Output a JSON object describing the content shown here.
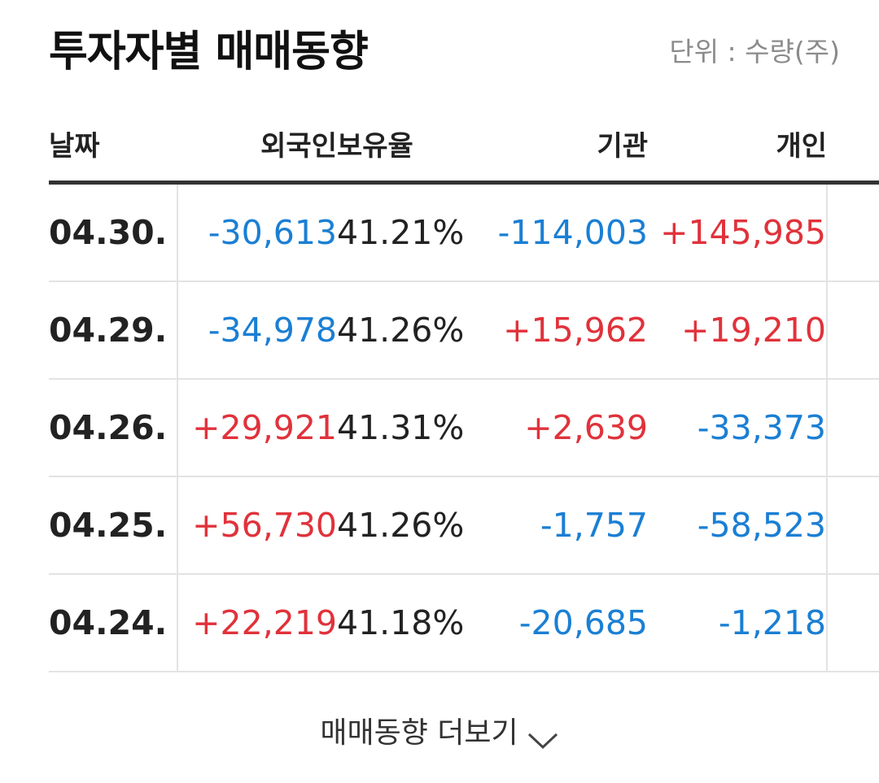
{
  "header": {
    "title": "투자자별 매매동향",
    "unit": "단위 : 수량(주)"
  },
  "table": {
    "columns": [
      "날짜",
      "외국인",
      "보유율",
      "기관",
      "개인"
    ],
    "rows": [
      {
        "date": "04.30.",
        "foreign": "-30,613",
        "ratio": "41.21%",
        "institution": "-114,003",
        "individual": "+145,985"
      },
      {
        "date": "04.29.",
        "foreign": "-34,978",
        "ratio": "41.26%",
        "institution": "+15,962",
        "individual": "+19,210"
      },
      {
        "date": "04.26.",
        "foreign": "+29,921",
        "ratio": "41.31%",
        "institution": "+2,639",
        "individual": "-33,373"
      },
      {
        "date": "04.25.",
        "foreign": "+56,730",
        "ratio": "41.26%",
        "institution": "-1,757",
        "individual": "-58,523"
      },
      {
        "date": "04.24.",
        "foreign": "+22,219",
        "ratio": "41.18%",
        "institution": "-20,685",
        "individual": "-1,218"
      }
    ]
  },
  "more": {
    "label": "매매동향 더보기",
    "icon": "chevron-down-icon"
  },
  "colors": {
    "positive": "#e0323b",
    "negative": "#1a7fd4"
  }
}
